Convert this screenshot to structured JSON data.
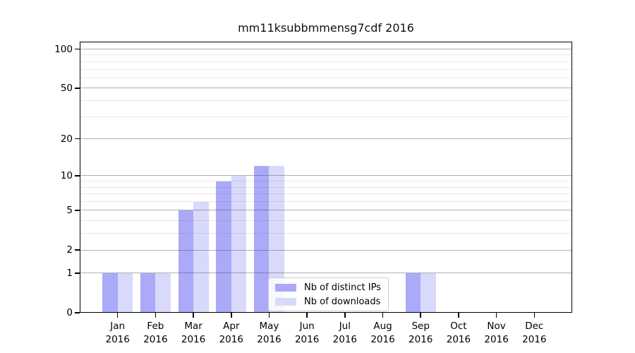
{
  "chart_data": {
    "type": "bar",
    "title": "mm11ksubbmmensg7cdf 2016",
    "categories": [
      "Jan 2016",
      "Feb 2016",
      "Mar 2016",
      "Apr 2016",
      "May 2016",
      "Jun 2016",
      "Jul 2016",
      "Aug 2016",
      "Sep 2016",
      "Oct 2016",
      "Nov 2016",
      "Dec 2016"
    ],
    "series": [
      {
        "name": "Nb of distinct IPs",
        "color": "#aaaaf8",
        "values": [
          1,
          1,
          5,
          9,
          12,
          0,
          0,
          0,
          1,
          0,
          0,
          0
        ]
      },
      {
        "name": "Nb of downloads",
        "color": "#d9d9fb",
        "values": [
          1,
          1,
          6,
          10,
          12,
          0,
          0,
          0,
          1,
          0,
          0,
          0
        ]
      }
    ],
    "xlabel": "",
    "ylabel": "",
    "yscale": "log1p",
    "ylim": [
      0,
      114
    ],
    "y_major_ticks": [
      100,
      50,
      20,
      10,
      5,
      2,
      1,
      0
    ],
    "y_minor_ticks": [
      3,
      4,
      6,
      7,
      8,
      9,
      30,
      40,
      60,
      70,
      80,
      90
    ],
    "grid": true,
    "legend_position": "lower center"
  },
  "colors": {
    "distinct_ips_bar": "#aaaaf8",
    "downloads_bar": "#d9d9fb",
    "grid_major": "#b0b0b0",
    "grid_minor": "#e8e8e8",
    "axis": "#000000",
    "legend_border": "#cccccc"
  }
}
